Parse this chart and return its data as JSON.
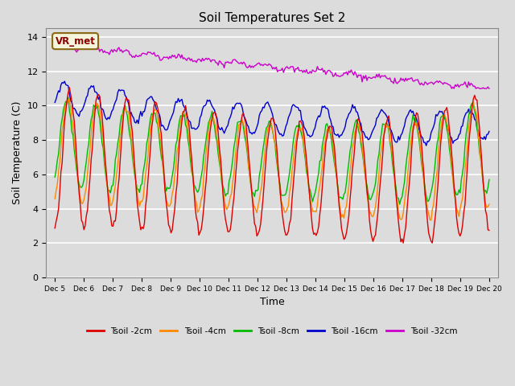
{
  "title": "Soil Temperatures Set 2",
  "xlabel": "Time",
  "ylabel": "Soil Temperature (C)",
  "ylim": [
    0,
    14.5
  ],
  "yticks": [
    0,
    2,
    4,
    6,
    8,
    10,
    12,
    14
  ],
  "bg_color": "#dcdcdc",
  "grid_color": "#ffffff",
  "annotation_text": "VR_met",
  "annotation_color": "#8B0000",
  "annotation_bg": "#f5f5dc",
  "annotation_border": "#8B6914",
  "series": [
    {
      "label": "Tsoil -2cm",
      "color": "#dd0000"
    },
    {
      "label": "Tsoil -4cm",
      "color": "#ff8800"
    },
    {
      "label": "Tsoil -8cm",
      "color": "#00bb00"
    },
    {
      "label": "Tsoil -16cm",
      "color": "#0000cc"
    },
    {
      "label": "Tsoil -32cm",
      "color": "#cc00cc"
    }
  ],
  "start_day": 5,
  "end_day": 20
}
